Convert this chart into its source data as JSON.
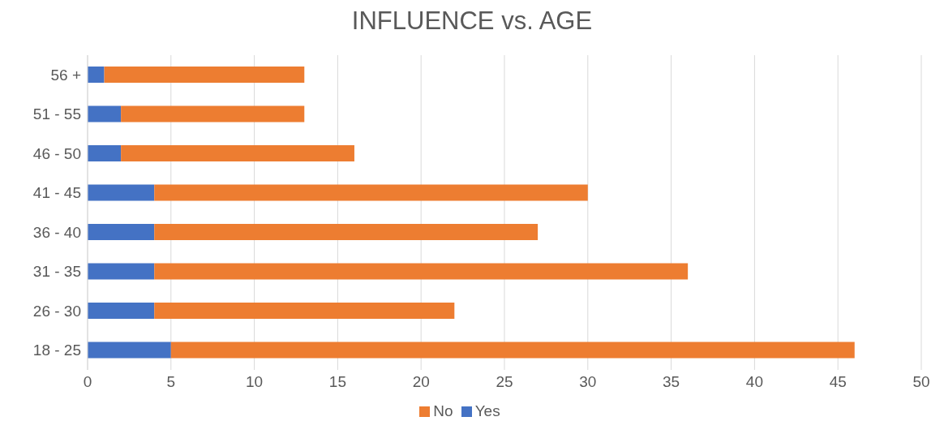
{
  "chart_data": {
    "type": "bar",
    "title": "INFLUENCE vs. AGE",
    "orientation": "horizontal",
    "stacked": true,
    "categories": [
      "56 +",
      "51 - 55",
      "46 - 50",
      "41 - 45",
      "36 - 40",
      "31 - 35",
      "26 - 30",
      "18 - 25"
    ],
    "series": [
      {
        "name": "Yes",
        "color": "#4472c4",
        "values": [
          1,
          2,
          2,
          4,
          4,
          4,
          4,
          5
        ]
      },
      {
        "name": "No",
        "color": "#ed7d31",
        "values": [
          12,
          11,
          14,
          26,
          23,
          32,
          18,
          41
        ]
      }
    ],
    "xlim": [
      0,
      50
    ],
    "xticks": [
      0,
      5,
      10,
      15,
      20,
      25,
      30,
      35,
      40,
      45,
      50
    ],
    "grid": "x",
    "legend": "bottom"
  }
}
